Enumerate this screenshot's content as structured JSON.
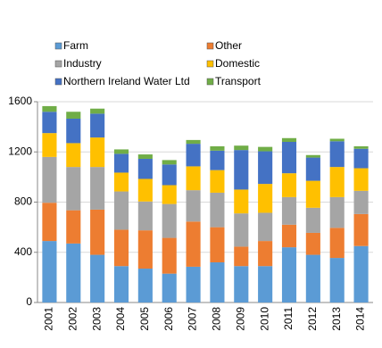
{
  "chart_data": {
    "type": "stacked_bar",
    "categories": [
      "2001",
      "2002",
      "2003",
      "2004",
      "2005",
      "2006",
      "2007",
      "2008",
      "2009",
      "2010",
      "2011",
      "2012",
      "2013",
      "2014"
    ],
    "series": [
      {
        "name": "Farm",
        "color": "#5b9bd5",
        "values": [
          490,
          470,
          380,
          290,
          270,
          230,
          285,
          320,
          290,
          290,
          440,
          380,
          355,
          450
        ]
      },
      {
        "name": "Other",
        "color": "#ed7d31",
        "values": [
          305,
          265,
          360,
          290,
          305,
          285,
          360,
          280,
          155,
          200,
          180,
          175,
          240,
          255
        ]
      },
      {
        "name": "Industry",
        "color": "#a5a5a5",
        "values": [
          365,
          345,
          340,
          305,
          230,
          270,
          250,
          275,
          265,
          225,
          220,
          200,
          245,
          185
        ]
      },
      {
        "name": "Domestic",
        "color": "#ffc000",
        "values": [
          190,
          190,
          235,
          150,
          180,
          150,
          190,
          180,
          190,
          230,
          190,
          215,
          240,
          180
        ]
      },
      {
        "name": "Northern Ireland Water Ltd",
        "color": "#4472c4",
        "values": [
          170,
          195,
          190,
          150,
          160,
          165,
          180,
          155,
          315,
          260,
          250,
          185,
          205,
          155
        ]
      },
      {
        "name": "Transport",
        "color": "#70ad47",
        "values": [
          45,
          55,
          40,
          35,
          35,
          35,
          30,
          35,
          35,
          35,
          30,
          20,
          20,
          20
        ]
      }
    ],
    "ylim": [
      0,
      1600
    ],
    "yticks": [
      0,
      400,
      800,
      1200,
      1600
    ],
    "grid": true
  }
}
